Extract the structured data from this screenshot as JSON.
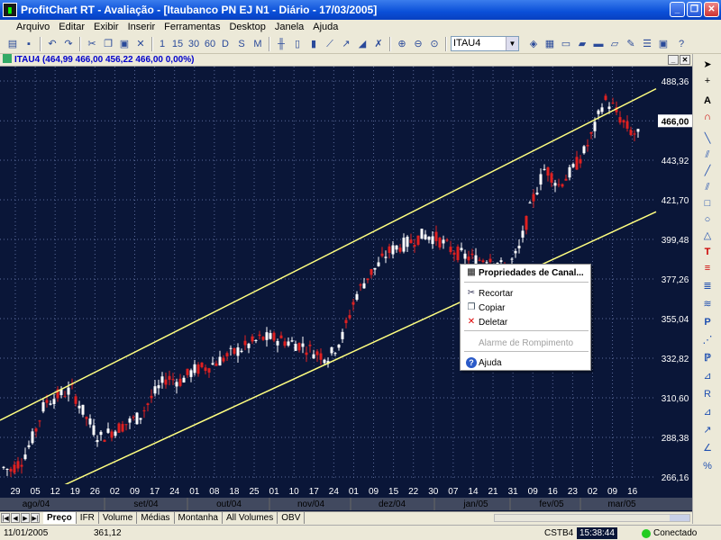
{
  "window": {
    "title": "ProfitChart RT - Avaliação - [Itaubanco PN  EJ  N1 - Diário - 17/03/2005]"
  },
  "menu": [
    "Arquivo",
    "Editar",
    "Exibir",
    "Inserir",
    "Ferramentas",
    "Desktop",
    "Janela",
    "Ajuda"
  ],
  "toolbar": {
    "periods": [
      "1",
      "15",
      "30",
      "60",
      "D",
      "S",
      "M"
    ],
    "symbol": "ITAU4"
  },
  "chart_header": {
    "symbol": "ITAU4",
    "values": "(464,99  466,00  456,22  466,00  0,00%)"
  },
  "chart_data": {
    "type": "candlestick",
    "y_ticks": [
      "488,36",
      "466,00",
      "443,92",
      "421,70",
      "399,48",
      "377,26",
      "355,04",
      "332,82",
      "310,60",
      "288,38",
      "266,16"
    ],
    "ylim": [
      266.16,
      488.36
    ],
    "current_price": "466,00",
    "x_day_labels": [
      "29",
      "05",
      "12",
      "19",
      "26",
      "02",
      "09",
      "17",
      "24",
      "01",
      "08",
      "18",
      "25",
      "01",
      "10",
      "17",
      "24",
      "01",
      "09",
      "15",
      "22",
      "30",
      "07",
      "14",
      "21",
      "31",
      "09",
      "16",
      "23",
      "02",
      "09",
      "16"
    ],
    "x_month_labels": [
      "ago/04",
      "set/04",
      "out/04",
      "nov/04",
      "dez/04",
      "jan/05",
      "fev/05",
      "mar/05"
    ],
    "channel": {
      "upper": {
        "start": [
          0,
          298
        ],
        "end": [
          160,
          484
        ]
      },
      "lower": {
        "start": [
          0,
          245
        ],
        "end": [
          160,
          415
        ]
      }
    },
    "colors": {
      "up": "#ffffff",
      "down": "#e02020",
      "channel": "#ffff80",
      "background": "#0a1638",
      "grid": "#5a6a9a"
    }
  },
  "tabs": [
    "Preço",
    "IFR",
    "Volume",
    "Médias",
    "Montanha",
    "All Volumes",
    "OBV"
  ],
  "context_menu": {
    "items": [
      {
        "label": "Propriedades de Canal...",
        "icon": "properties-icon",
        "bold": true,
        "enabled": true
      },
      {
        "label": "Recortar",
        "icon": "scissors-icon",
        "enabled": true
      },
      {
        "label": "Copiar",
        "icon": "copy-icon",
        "enabled": true
      },
      {
        "label": "Deletar",
        "icon": "delete-x-icon",
        "enabled": true
      },
      {
        "label": "Alarme de Rompimento",
        "icon": "",
        "enabled": false
      },
      {
        "label": "Ajuda",
        "icon": "help-icon",
        "enabled": true
      }
    ]
  },
  "status": {
    "date": "11/01/2005",
    "value": "361,12",
    "server": "CSTB4",
    "time": "15:38:44",
    "connection": "Conectado"
  }
}
